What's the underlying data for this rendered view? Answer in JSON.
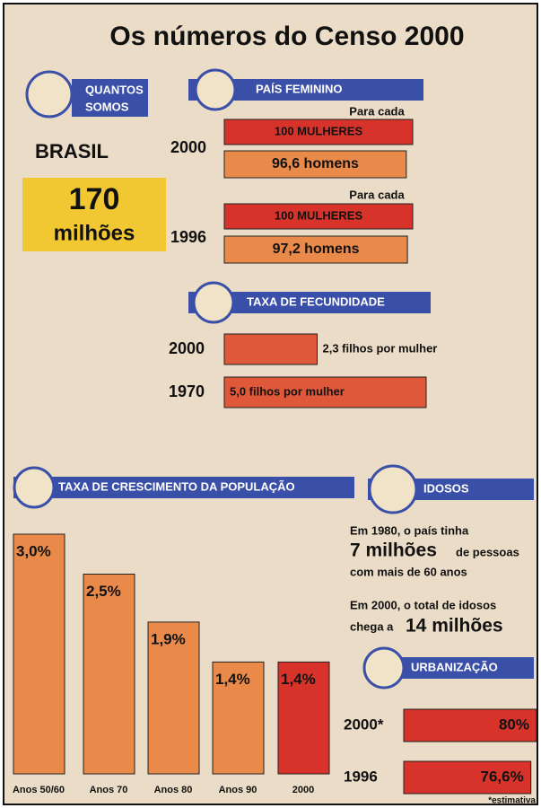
{
  "title": "Os números do Censo 2000",
  "quantos_somos": {
    "heading_line1": "QUANTOS",
    "heading_line2": "SOMOS",
    "country": "BRASIL",
    "number": "170",
    "unit": "milhões"
  },
  "pais_feminino": {
    "heading": "PAÍS FEMININO",
    "women_color": "#d8332a",
    "men_color": "#e98a4a",
    "rows": [
      {
        "year": "2000",
        "per_each": "Para cada",
        "women": 100,
        "women_label": "100 MULHERES",
        "men": 96.6,
        "men_label": "96,6 homens"
      },
      {
        "year": "1996",
        "per_each": "Para cada",
        "women": 100,
        "women_label": "100 MULHERES",
        "men": 97.2,
        "men_label": "97,2 homens"
      }
    ]
  },
  "fecundidade": {
    "heading": "TAXA DE FECUNDIDADE",
    "color": "#e0583a",
    "rows": [
      {
        "year": "2000",
        "value": 2.3,
        "label": "2,3 filhos por mulher"
      },
      {
        "year": "1970",
        "value": 5.0,
        "label": "5,0 filhos por mulher"
      }
    ]
  },
  "chart_data": {
    "type": "bar",
    "title": "TAXA DE CRESCIMENTO DA POPULAÇÃO",
    "categories": [
      "Anos 50/60",
      "Anos 70",
      "Anos 80",
      "Anos 90",
      "2000"
    ],
    "values": [
      3.0,
      2.5,
      1.9,
      1.4,
      1.4
    ],
    "value_labels": [
      "3,0%",
      "2,5%",
      "1,9%",
      "1,4%",
      "1,4%"
    ],
    "colors": [
      "#e98a4a",
      "#e98a4a",
      "#e98a4a",
      "#e98a4a",
      "#d8332a"
    ]
  },
  "idosos": {
    "heading": "IDOSOS",
    "line1": "Em 1980, o país tinha",
    "line2_big": "7 milhões",
    "line2_rest": "de pessoas",
    "line3": "com mais de 60 anos",
    "line4": "Em 2000, o total de idosos",
    "line5": "chega a",
    "line5_big": "14 milhões"
  },
  "urbanizacao": {
    "heading": "URBANIZAÇÃO",
    "color": "#d8332a",
    "rows": [
      {
        "year": "2000*",
        "value": 80,
        "label": "80%"
      },
      {
        "year": "1996",
        "value": 76.6,
        "label": "76,6%"
      }
    ],
    "footnote": "*estimativa"
  }
}
